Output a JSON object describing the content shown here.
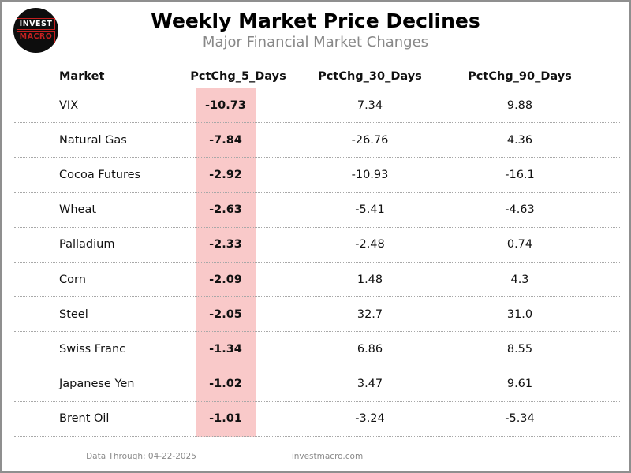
{
  "logo": {
    "line1": "INVEST",
    "line2": "MACRO"
  },
  "chart_data": {
    "type": "table",
    "title": "Weekly Market Price Declines",
    "subtitle": "Major Financial Market Changes",
    "columns": [
      "Market",
      "PctChg_5_Days",
      "PctChg_30_Days",
      "PctChg_90_Days"
    ],
    "highlighted_column": "PctChg_5_Days",
    "rows": [
      {
        "market": "VIX",
        "pct_chg_5_days": "-10.73",
        "pct_chg_30_days": "7.34",
        "pct_chg_90_days": "9.88"
      },
      {
        "market": "Natural Gas",
        "pct_chg_5_days": "-7.84",
        "pct_chg_30_days": "-26.76",
        "pct_chg_90_days": "4.36"
      },
      {
        "market": "Cocoa Futures",
        "pct_chg_5_days": "-2.92",
        "pct_chg_30_days": "-10.93",
        "pct_chg_90_days": "-16.1"
      },
      {
        "market": "Wheat",
        "pct_chg_5_days": "-2.63",
        "pct_chg_30_days": "-5.41",
        "pct_chg_90_days": "-4.63"
      },
      {
        "market": "Palladium",
        "pct_chg_5_days": "-2.33",
        "pct_chg_30_days": "-2.48",
        "pct_chg_90_days": "0.74"
      },
      {
        "market": "Corn",
        "pct_chg_5_days": "-2.09",
        "pct_chg_30_days": "1.48",
        "pct_chg_90_days": "4.3"
      },
      {
        "market": "Steel",
        "pct_chg_5_days": "-2.05",
        "pct_chg_30_days": "32.7",
        "pct_chg_90_days": "31.0"
      },
      {
        "market": "Swiss Franc",
        "pct_chg_5_days": "-1.34",
        "pct_chg_30_days": "6.86",
        "pct_chg_90_days": "8.55"
      },
      {
        "market": "Japanese Yen",
        "pct_chg_5_days": "-1.02",
        "pct_chg_30_days": "3.47",
        "pct_chg_90_days": "9.61"
      },
      {
        "market": "Brent Oil",
        "pct_chg_5_days": "-1.01",
        "pct_chg_30_days": "-3.24",
        "pct_chg_90_days": "-5.34"
      }
    ]
  },
  "footer": {
    "data_through": "Data Through: 04-22-2025",
    "website": "investmacro.com"
  },
  "colors": {
    "highlight_pink": "#f9c9c9",
    "logo_red": "#c42020",
    "subtitle_gray": "#888888",
    "footer_gray": "#8a8a8a",
    "border_gray": "#8f8f8f"
  }
}
